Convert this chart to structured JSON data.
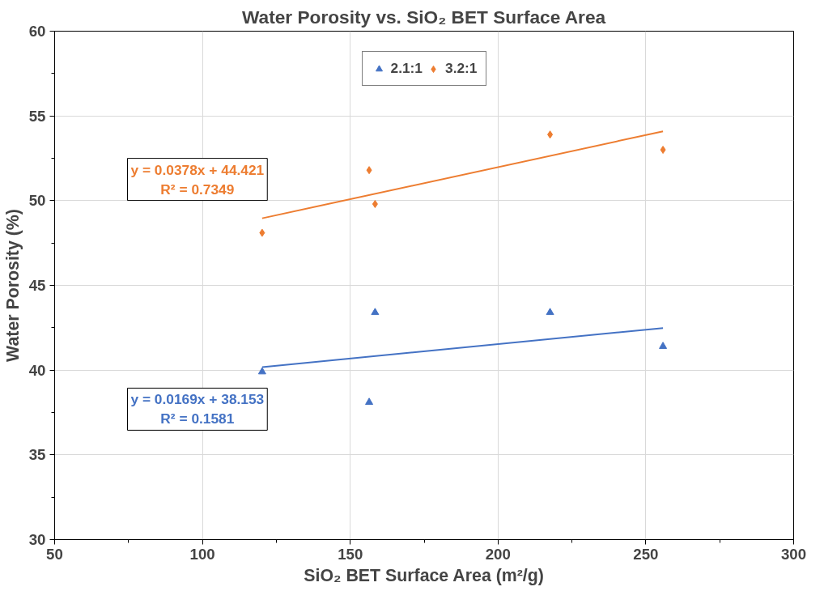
{
  "chart_data": {
    "type": "scatter",
    "title": "Water Porosity vs. SiO₂ BET Surface Area",
    "xlabel": "SiO₂ BET Surface Area (m²/g)",
    "ylabel": "Water Porosity (%)",
    "xlim": [
      50,
      300
    ],
    "xticks": [
      50,
      100,
      150,
      200,
      250,
      300
    ],
    "ylim": [
      30,
      60
    ],
    "yticks": [
      30,
      35,
      40,
      45,
      50,
      55,
      60
    ],
    "grid": true,
    "legend": "top",
    "series": [
      {
        "name": "2.1:1",
        "marker": "triangle",
        "color": "#4472c4",
        "x": [
          120.2,
          156.4,
          158.4,
          217.6,
          255.8
        ],
        "values": [
          39.9,
          38.1,
          43.4,
          43.4,
          41.4
        ]
      },
      {
        "name": "3.2:1",
        "marker": "diamond",
        "color": "#ed7d31",
        "x": [
          120.2,
          156.4,
          158.4,
          217.6,
          255.8
        ],
        "values": [
          48.1,
          51.8,
          49.8,
          53.9,
          53.0
        ]
      },
      {
        "type": "line",
        "marker": "none",
        "color": "#4472c4",
        "x": [
          120.2,
          255.8
        ],
        "values": [
          40.18,
          42.48
        ]
      },
      {
        "type": "line",
        "marker": "none",
        "color": "#ed7d31",
        "x": [
          120.2,
          255.8
        ],
        "values": [
          48.96,
          54.09
        ]
      }
    ],
    "annotations": [
      "y = 0.0169x + 38.153\nR² = 0.1581",
      "y = 0.0378x + 44.421\nR² = 0.7349"
    ]
  }
}
